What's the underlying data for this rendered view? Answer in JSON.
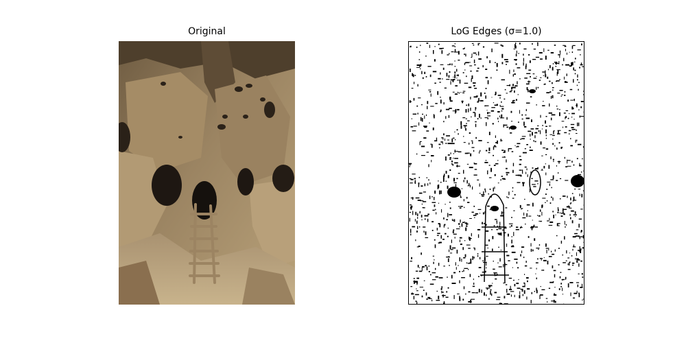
{
  "figure": {
    "panels": [
      {
        "title": "Original"
      },
      {
        "title": "LoG Edges (σ=1.0)"
      }
    ]
  },
  "colors": {
    "background": "#ffffff",
    "rock_light": "#b39b73",
    "rock_mid": "#8e7654",
    "rock_dark": "#5b4a34",
    "shadow": "#1e1712",
    "ladder": "#9c8462",
    "edge_ink": "#000000"
  }
}
